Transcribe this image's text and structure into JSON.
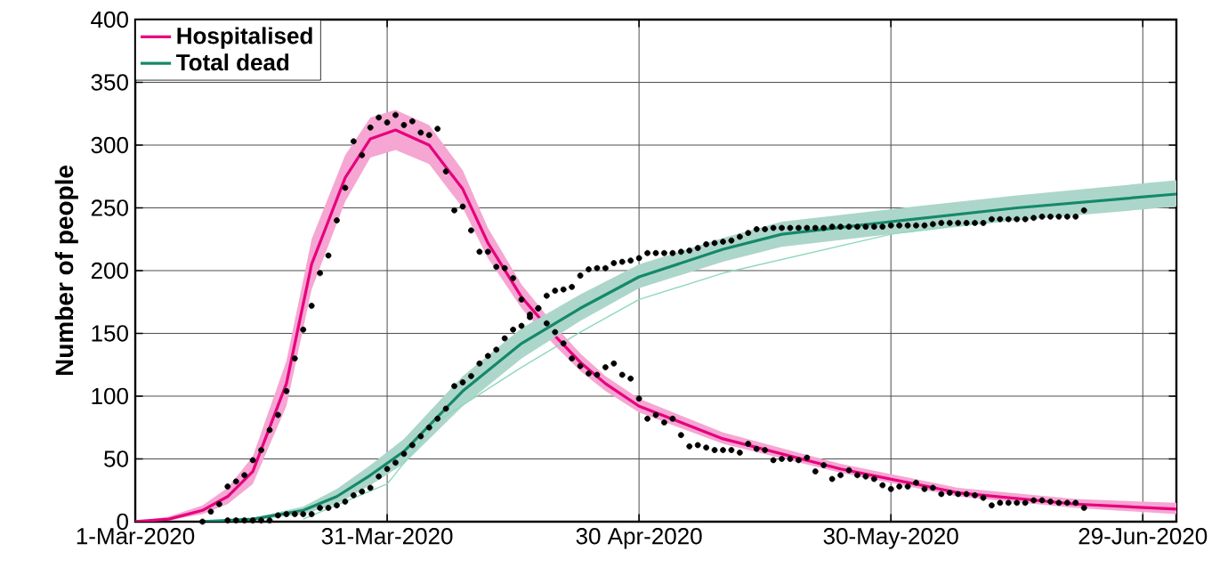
{
  "chart_data": {
    "type": "line",
    "ylabel": "Number of people",
    "xlim": [
      "2020-03-01",
      "2020-07-03"
    ],
    "ylim": [
      0,
      400
    ],
    "xticks": [
      {
        "value": "2020-03-01",
        "label": "1-Mar-2020"
      },
      {
        "value": "2020-03-31",
        "label": "31-Mar-2020"
      },
      {
        "value": "2020-04-30",
        "label": "30 Apr-2020"
      },
      {
        "value": "2020-05-30",
        "label": "30-May-2020"
      },
      {
        "value": "2020-06-29",
        "label": "29-Jun-2020"
      }
    ],
    "yticks": [
      0,
      50,
      100,
      150,
      200,
      250,
      300,
      350,
      400
    ],
    "grid": true,
    "legend": "top left",
    "series": [
      {
        "name": "Hospitalised",
        "color": "#e6007e",
        "marker": "none",
        "x": [
          "2020-03-01",
          "2020-03-05",
          "2020-03-09",
          "2020-03-12",
          "2020-03-15",
          "2020-03-19",
          "2020-03-22",
          "2020-03-26",
          "2020-03-29",
          "2020-04-01",
          "2020-04-05",
          "2020-04-09",
          "2020-04-12",
          "2020-04-16",
          "2020-04-20",
          "2020-04-23",
          "2020-04-26",
          "2020-04-30",
          "2020-05-10",
          "2020-05-24",
          "2020-06-07",
          "2020-06-21",
          "2020-07-03"
        ],
        "values": [
          0,
          2,
          9,
          20,
          40,
          110,
          205,
          274,
          305,
          312,
          300,
          265,
          222,
          179,
          148,
          127,
          110,
          92,
          66,
          42,
          23,
          14,
          10
        ],
        "lower": [
          0,
          1,
          6,
          14,
          30,
          92,
          185,
          255,
          290,
          296,
          285,
          250,
          210,
          170,
          140,
          120,
          104,
          87,
          62,
          39,
          20,
          11,
          6
        ],
        "upper": [
          0,
          4,
          13,
          27,
          52,
          128,
          225,
          292,
          322,
          328,
          316,
          280,
          234,
          189,
          156,
          134,
          116,
          98,
          71,
          46,
          27,
          18,
          15
        ]
      },
      {
        "name": "Total dead",
        "color": "#14896a",
        "marker": "none",
        "x": [
          "2020-03-09",
          "2020-03-15",
          "2020-03-21",
          "2020-03-25",
          "2020-03-29",
          "2020-04-02",
          "2020-04-09",
          "2020-04-16",
          "2020-04-23",
          "2020-04-30",
          "2020-05-10",
          "2020-05-17",
          "2020-05-30",
          "2020-06-14",
          "2020-07-03"
        ],
        "values": [
          0,
          2,
          9,
          20,
          37,
          56,
          104,
          142,
          170,
          195,
          217,
          229,
          239,
          250,
          261
        ],
        "lower": [
          0,
          1,
          6,
          14,
          29,
          46,
          92,
          130,
          160,
          186,
          207,
          219,
          229,
          240,
          251
        ],
        "upper": [
          0,
          3,
          12,
          26,
          45,
          66,
          116,
          154,
          181,
          205,
          226,
          239,
          249,
          260,
          272
        ]
      },
      {
        "color": "#8fd8bb",
        "marker": "none",
        "x": [
          "2020-03-21",
          "2020-03-31",
          "2020-04-06",
          "2020-04-16",
          "2020-04-23",
          "2020-04-30",
          "2020-05-10",
          "2020-05-30",
          "2020-06-14"
        ],
        "values": [
          2,
          30,
          80,
          123,
          151,
          177,
          198,
          229,
          242
        ]
      },
      {
        "type": "scatter",
        "color": "#000000",
        "marker": "circle",
        "x": [
          "2020-03-10",
          "2020-03-11",
          "2020-03-12",
          "2020-03-13",
          "2020-03-14",
          "2020-03-15",
          "2020-03-16",
          "2020-03-17",
          "2020-03-18",
          "2020-03-19",
          "2020-03-20",
          "2020-03-21",
          "2020-03-22",
          "2020-03-23",
          "2020-03-24",
          "2020-03-25",
          "2020-03-26",
          "2020-03-27",
          "2020-03-28",
          "2020-03-29",
          "2020-03-30",
          "2020-03-31",
          "2020-04-01",
          "2020-04-02",
          "2020-04-03",
          "2020-04-04",
          "2020-04-05",
          "2020-04-06",
          "2020-04-07",
          "2020-04-08",
          "2020-04-09",
          "2020-04-10",
          "2020-04-11",
          "2020-04-12",
          "2020-04-13",
          "2020-04-14",
          "2020-04-15",
          "2020-04-16",
          "2020-04-17",
          "2020-04-18",
          "2020-04-19",
          "2020-04-20",
          "2020-04-21",
          "2020-04-22",
          "2020-04-23",
          "2020-04-24",
          "2020-04-25",
          "2020-04-26",
          "2020-04-27",
          "2020-04-28",
          "2020-04-29",
          "2020-04-30",
          "2020-05-01",
          "2020-05-02",
          "2020-05-03",
          "2020-05-04",
          "2020-05-05",
          "2020-05-06",
          "2020-05-07",
          "2020-05-08",
          "2020-05-09",
          "2020-05-10",
          "2020-05-11",
          "2020-05-12",
          "2020-05-13",
          "2020-05-14",
          "2020-05-15",
          "2020-05-16",
          "2020-05-17",
          "2020-05-18",
          "2020-05-19",
          "2020-05-20",
          "2020-05-21",
          "2020-05-22",
          "2020-05-23",
          "2020-05-24",
          "2020-05-25",
          "2020-05-26",
          "2020-05-27",
          "2020-05-28",
          "2020-05-29",
          "2020-05-30",
          "2020-05-31",
          "2020-06-01",
          "2020-06-02",
          "2020-06-03",
          "2020-06-04",
          "2020-06-05",
          "2020-06-06",
          "2020-06-07",
          "2020-06-08",
          "2020-06-09",
          "2020-06-10",
          "2020-06-11",
          "2020-06-12",
          "2020-06-13",
          "2020-06-14",
          "2020-06-15",
          "2020-06-16",
          "2020-06-17",
          "2020-06-18",
          "2020-06-19",
          "2020-06-20",
          "2020-06-21",
          "2020-06-22"
        ],
        "values": [
          8,
          14,
          28,
          32,
          37,
          49,
          57,
          73,
          85,
          104,
          130,
          153,
          172,
          198,
          212,
          240,
          266,
          303,
          292,
          314,
          322,
          318,
          324,
          316,
          319,
          310,
          308,
          313,
          279,
          248,
          251,
          232,
          215,
          215,
          203,
          202,
          194,
          177,
          165,
          170,
          158,
          151,
          142,
          130,
          124,
          118,
          117,
          123,
          126,
          117,
          114,
          98,
          82,
          85,
          79,
          82,
          69,
          60,
          61,
          59,
          57,
          57,
          57,
          55,
          62,
          58,
          57,
          49,
          50,
          50,
          49,
          51,
          40,
          45,
          34,
          37,
          41,
          37,
          36,
          34,
          29,
          26,
          28,
          28,
          31,
          26,
          27,
          22,
          23,
          22,
          22,
          21,
          19,
          13,
          15,
          15,
          15,
          15,
          17,
          17,
          16,
          15,
          15,
          15,
          11
        ]
      },
      {
        "type": "scatter",
        "color": "#000000",
        "marker": "circle",
        "x": [
          "2020-03-09",
          "2020-03-12",
          "2020-03-13",
          "2020-03-14",
          "2020-03-15",
          "2020-03-16",
          "2020-03-17",
          "2020-03-18",
          "2020-03-19",
          "2020-03-20",
          "2020-03-21",
          "2020-03-22",
          "2020-03-23",
          "2020-03-24",
          "2020-03-25",
          "2020-03-26",
          "2020-03-27",
          "2020-03-28",
          "2020-03-29",
          "2020-03-30",
          "2020-03-31",
          "2020-04-01",
          "2020-04-02",
          "2020-04-03",
          "2020-04-04",
          "2020-04-05",
          "2020-04-06",
          "2020-04-07",
          "2020-04-08",
          "2020-04-09",
          "2020-04-10",
          "2020-04-11",
          "2020-04-12",
          "2020-04-13",
          "2020-04-14",
          "2020-04-15",
          "2020-04-16",
          "2020-04-17",
          "2020-04-18",
          "2020-04-19",
          "2020-04-20",
          "2020-04-21",
          "2020-04-22",
          "2020-04-23",
          "2020-04-24",
          "2020-04-25",
          "2020-04-26",
          "2020-04-27",
          "2020-04-28",
          "2020-04-29",
          "2020-04-30",
          "2020-05-01",
          "2020-05-02",
          "2020-05-03",
          "2020-05-04",
          "2020-05-05",
          "2020-05-06",
          "2020-05-07",
          "2020-05-08",
          "2020-05-09",
          "2020-05-10",
          "2020-05-11",
          "2020-05-12",
          "2020-05-13",
          "2020-05-14",
          "2020-05-15",
          "2020-05-16",
          "2020-05-17",
          "2020-05-18",
          "2020-05-19",
          "2020-05-20",
          "2020-05-21",
          "2020-05-22",
          "2020-05-23",
          "2020-05-24",
          "2020-05-25",
          "2020-05-26",
          "2020-05-27",
          "2020-05-28",
          "2020-05-29",
          "2020-05-30",
          "2020-05-31",
          "2020-06-01",
          "2020-06-02",
          "2020-06-03",
          "2020-06-04",
          "2020-06-05",
          "2020-06-06",
          "2020-06-07",
          "2020-06-08",
          "2020-06-09",
          "2020-06-10",
          "2020-06-11",
          "2020-06-12",
          "2020-06-13",
          "2020-06-14",
          "2020-06-15",
          "2020-06-16",
          "2020-06-17",
          "2020-06-18",
          "2020-06-19",
          "2020-06-20",
          "2020-06-21",
          "2020-06-22"
        ],
        "values": [
          0,
          1,
          1,
          1,
          1,
          1,
          1,
          5,
          6,
          6,
          6,
          6,
          11,
          11,
          13,
          16,
          21,
          24,
          27,
          36,
          42,
          47,
          54,
          61,
          68,
          75,
          82,
          90,
          108,
          111,
          116,
          126,
          132,
          137,
          146,
          153,
          156,
          163,
          170,
          180,
          184,
          185,
          187,
          196,
          201,
          202,
          202,
          206,
          207,
          208,
          210,
          214,
          214,
          214,
          214,
          215,
          216,
          218,
          221,
          222,
          223,
          224,
          227,
          230,
          233,
          233,
          234,
          234,
          234,
          234,
          234,
          234,
          234,
          235,
          235,
          235,
          235,
          235,
          235,
          235,
          236,
          236,
          236,
          236,
          236,
          237,
          238,
          238,
          238,
          238,
          238,
          238,
          241,
          241,
          241,
          241,
          241,
          242,
          243,
          243,
          243,
          243,
          243,
          248
        ]
      }
    ]
  }
}
